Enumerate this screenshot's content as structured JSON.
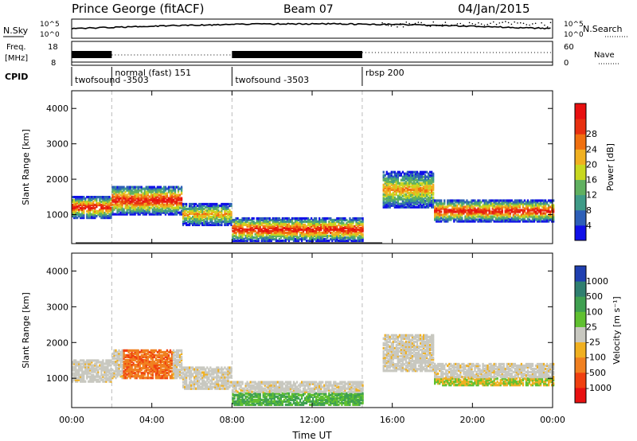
{
  "header": {
    "station": "Prince George (fitACF)",
    "beam": "Beam 07",
    "date": "04/Jan/2015"
  },
  "strip_labels": {
    "nsky": "N.Sky",
    "nsearch": "N.Search",
    "freq": "Freq.",
    "freq_unit": "[MHz]",
    "nave": "Nave",
    "cpid": "CPID"
  },
  "strip_ticks": {
    "noise_left": [
      "10^5",
      "10^0"
    ],
    "noise_right": [
      "10^5",
      "10^0"
    ],
    "freq_left": [
      "18",
      "8"
    ],
    "nave_right": [
      "60",
      "0"
    ]
  },
  "cpid_segments": [
    {
      "label": "twofsound -3503",
      "start_hour": 0.0,
      "end_hour": 2.0
    },
    {
      "label": "normal (fast) 151",
      "start_hour": 2.0,
      "end_hour": 8.0
    },
    {
      "label": "twofsound -3503",
      "start_hour": 8.0,
      "end_hour": 14.5
    },
    {
      "label": "rbsp 200",
      "start_hour": 14.5,
      "end_hour": 24.0
    }
  ],
  "chart_data": [
    {
      "type": "heatmap",
      "panel": "power",
      "ylabel": "Slant Range [km]",
      "xlabel": "",
      "ylim": [
        180,
        4500
      ],
      "xlim_hours": [
        0,
        24
      ],
      "x_ticks": [
        "00:00",
        "04:00",
        "08:00",
        "12:00",
        "16:00",
        "20:00",
        "00:00"
      ],
      "y_ticks": [
        "1000",
        "2000",
        "3000",
        "4000"
      ],
      "colorbar": {
        "label": "Power [dB]",
        "ticks": [
          "4",
          "8",
          "12",
          "16",
          "20",
          "24",
          "28"
        ],
        "colors": [
          "#1010e8",
          "#2d5fb8",
          "#3f9b88",
          "#60b060",
          "#c8d820",
          "#f0b020",
          "#f07010",
          "#e83010",
          "#e81010"
        ]
      },
      "bands": [
        {
          "start_hour": 0.0,
          "end_hour": 2.0,
          "range_low_km": 900,
          "range_high_km": 1500,
          "level": "high"
        },
        {
          "start_hour": 2.0,
          "end_hour": 5.5,
          "range_low_km": 1000,
          "range_high_km": 1800,
          "level": "high"
        },
        {
          "start_hour": 5.5,
          "end_hour": 8.0,
          "range_low_km": 700,
          "range_high_km": 1300,
          "level": "medium"
        },
        {
          "start_hour": 8.0,
          "end_hour": 14.5,
          "range_low_km": 250,
          "range_high_km": 900,
          "level": "high"
        },
        {
          "start_hour": 15.5,
          "end_hour": 18.0,
          "range_low_km": 1200,
          "range_high_km": 2200,
          "level": "medium"
        },
        {
          "start_hour": 18.0,
          "end_hour": 24.0,
          "range_low_km": 800,
          "range_high_km": 1400,
          "level": "high"
        }
      ]
    },
    {
      "type": "heatmap",
      "panel": "velocity",
      "ylabel": "Slant Range [km]",
      "xlabel": "Time UT",
      "ylim": [
        180,
        4500
      ],
      "xlim_hours": [
        0,
        24
      ],
      "x_ticks": [
        "00:00",
        "04:00",
        "08:00",
        "12:00",
        "16:00",
        "20:00",
        "00:00"
      ],
      "y_ticks": [
        "1000",
        "2000",
        "3000",
        "4000"
      ],
      "colorbar": {
        "label": "Velocity [m s⁻¹]",
        "ticks": [
          "1000",
          "500",
          "100",
          "25",
          "-25",
          "-100",
          "-500",
          "-1000"
        ],
        "colors": [
          "#1f3fb0",
          "#2f7f70",
          "#3fa050",
          "#60c030",
          "#c8c8c0",
          "#f0b020",
          "#f08020",
          "#f04010",
          "#e81010"
        ]
      }
    }
  ]
}
